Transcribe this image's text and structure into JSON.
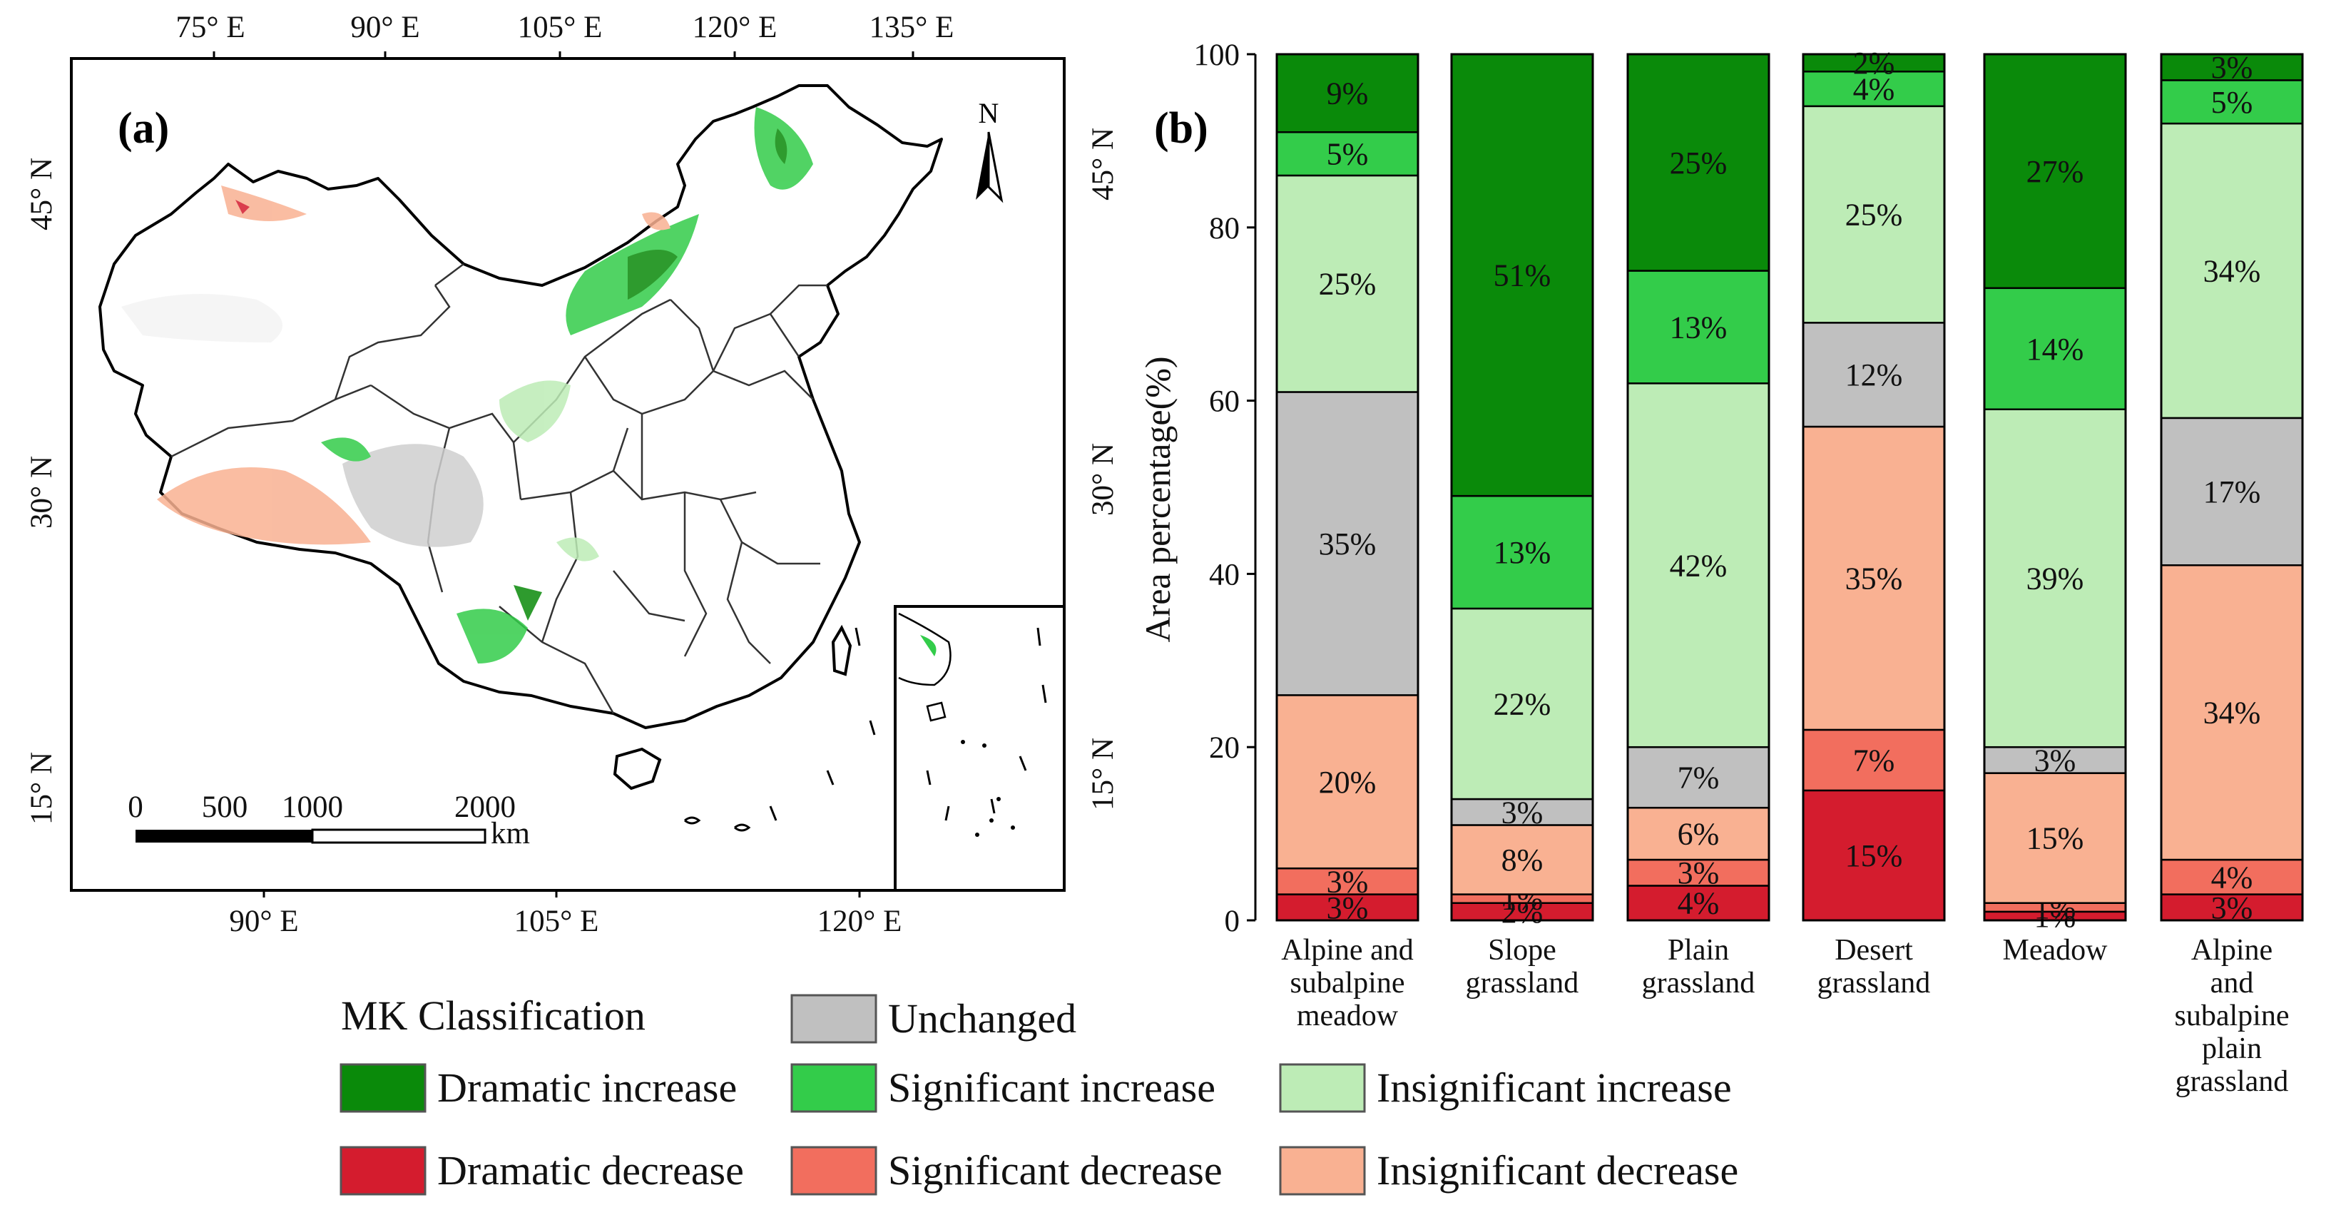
{
  "panel_a": {
    "label": "(a)",
    "north_label": "N",
    "top_lon_labels": [
      "75° E",
      "90° E",
      "105° E",
      "120° E",
      "135° E"
    ],
    "bottom_lon_labels": [
      "90° E",
      "105° E",
      "120° E"
    ],
    "left_lat_labels": [
      "45° N",
      "30° N",
      "15° N"
    ],
    "right_lat_labels": [
      "45° N",
      "30° N",
      "15° N"
    ],
    "scale_labels": [
      "0",
      "500",
      "1000",
      "2000"
    ],
    "scale_unit": "km"
  },
  "legend": {
    "title": "MK Classification",
    "items": [
      {
        "label": "Unchanged",
        "color": "#c0c0c0"
      },
      {
        "label": "Dramatic increase",
        "color": "#0a8a0a"
      },
      {
        "label": "Significant increase",
        "color": "#33cc4a"
      },
      {
        "label": "Insignificant increase",
        "color": "#bdecb6"
      },
      {
        "label": "Dramatic decrease",
        "color": "#d41c2e"
      },
      {
        "label": "Significant decrease",
        "color": "#f26e5e"
      },
      {
        "label": "Insignificant decrease",
        "color": "#f9b192"
      }
    ]
  },
  "chart_data": {
    "type": "bar",
    "stacked": true,
    "panel_label": "(b)",
    "title": "",
    "xlabel": "",
    "ylabel": "Area percentage(%)",
    "ylim": [
      0,
      100
    ],
    "yticks": [
      0,
      20,
      40,
      60,
      80,
      100
    ],
    "categories": [
      [
        "Alpine and",
        "subalpine",
        "meadow"
      ],
      [
        "Slope",
        "grassland"
      ],
      [
        "Plain",
        "grassland"
      ],
      [
        "Desert",
        "grassland"
      ],
      [
        "Meadow"
      ],
      [
        "Alpine",
        "and",
        "subalpine",
        "plain",
        "grassland"
      ]
    ],
    "series": [
      {
        "name": "Dramatic decrease",
        "color": "#d41c2e",
        "values": [
          3,
          2,
          4,
          15,
          1,
          3
        ],
        "labels": [
          "3%",
          "2%",
          "4%",
          "15%",
          "1%",
          "3%"
        ]
      },
      {
        "name": "Significant decrease",
        "color": "#f26e5e",
        "values": [
          3,
          1,
          3,
          7,
          1,
          4
        ],
        "labels": [
          "3%",
          "1%",
          "3%",
          "7%",
          "1%",
          "4%"
        ]
      },
      {
        "name": "Insignificant decrease",
        "color": "#f9b192",
        "values": [
          20,
          8,
          6,
          35,
          15,
          34
        ],
        "labels": [
          "20%",
          "8%",
          "6%",
          "35%",
          "15%",
          "34%"
        ]
      },
      {
        "name": "Unchanged",
        "color": "#c0c0c0",
        "values": [
          35,
          3,
          7,
          12,
          3,
          17
        ],
        "labels": [
          "35%",
          "3%",
          "7%",
          "12%",
          "3%",
          "17%"
        ]
      },
      {
        "name": "Insignificant increase",
        "color": "#bdecb6",
        "values": [
          25,
          22,
          42,
          25,
          39,
          34
        ],
        "labels": [
          "25%",
          "22%",
          "42%",
          "25%",
          "39%",
          "34%"
        ]
      },
      {
        "name": "Significant increase",
        "color": "#33cc4a",
        "values": [
          5,
          13,
          13,
          4,
          14,
          5
        ],
        "labels": [
          "5%",
          "13%",
          "13%",
          "4%",
          "14%",
          "5%"
        ]
      },
      {
        "name": "Dramatic increase",
        "color": "#0a8a0a",
        "values": [
          9,
          51,
          25,
          2,
          27,
          3
        ],
        "labels": [
          "9%",
          "51%",
          "25%",
          "2%",
          "27%",
          "3%"
        ]
      }
    ]
  }
}
